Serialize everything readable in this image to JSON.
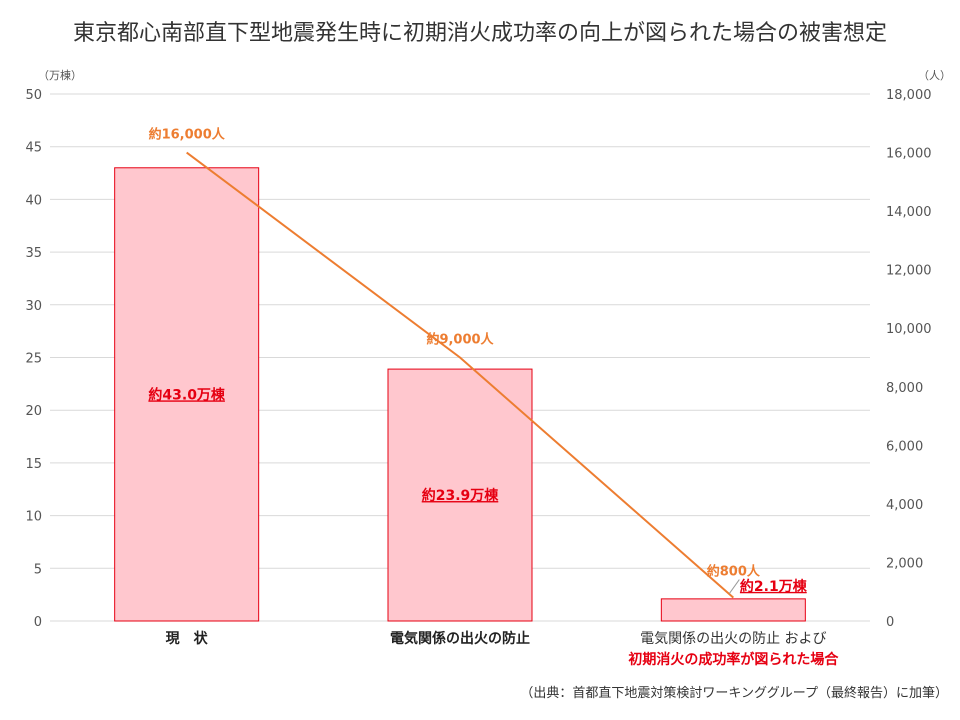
{
  "title": "東京都心南部直下型地震発生時に初期消火成功率の向上が図られた場合の被害想定",
  "source": "（出典：首都直下地震対策検討ワーキンググループ（最終報告）に加筆）",
  "chart_data": {
    "type": "bar",
    "categories": [
      "現　状",
      "電気関係の出火の防止",
      "電気関係の出火の防止 および"
    ],
    "category_extra_line": [
      "",
      "",
      "初期消火の成功率が図られた場合"
    ],
    "series": [
      {
        "type": "bar",
        "axis": "left",
        "values": [
          43.0,
          23.9,
          2.1
        ],
        "labels": [
          "約43.0万棟",
          "約23.9万棟",
          "約2.1万棟"
        ]
      },
      {
        "type": "line",
        "axis": "right",
        "values": [
          16000,
          9000,
          800
        ],
        "labels": [
          "約16,000人",
          "約9,000人",
          "約800人"
        ]
      }
    ],
    "left_axis": {
      "unit": "（万棟）",
      "ylim": [
        0,
        50
      ],
      "ticks": [
        "0",
        "5",
        "10",
        "15",
        "20",
        "25",
        "30",
        "35",
        "40",
        "45",
        "50"
      ]
    },
    "right_axis": {
      "unit": "（人）",
      "ylim": [
        0,
        18000
      ],
      "ticks": [
        "0",
        "2,000",
        "4,000",
        "6,000",
        "8,000",
        "10,000",
        "12,000",
        "14,000",
        "16,000",
        "18,000"
      ]
    },
    "grid": true,
    "colors": {
      "bar_fill": "#ffc7ce",
      "bar_stroke": "#e60012",
      "line": "#ed7d31",
      "bar_label": "#e60012",
      "grid": "#d9d9d9"
    }
  }
}
